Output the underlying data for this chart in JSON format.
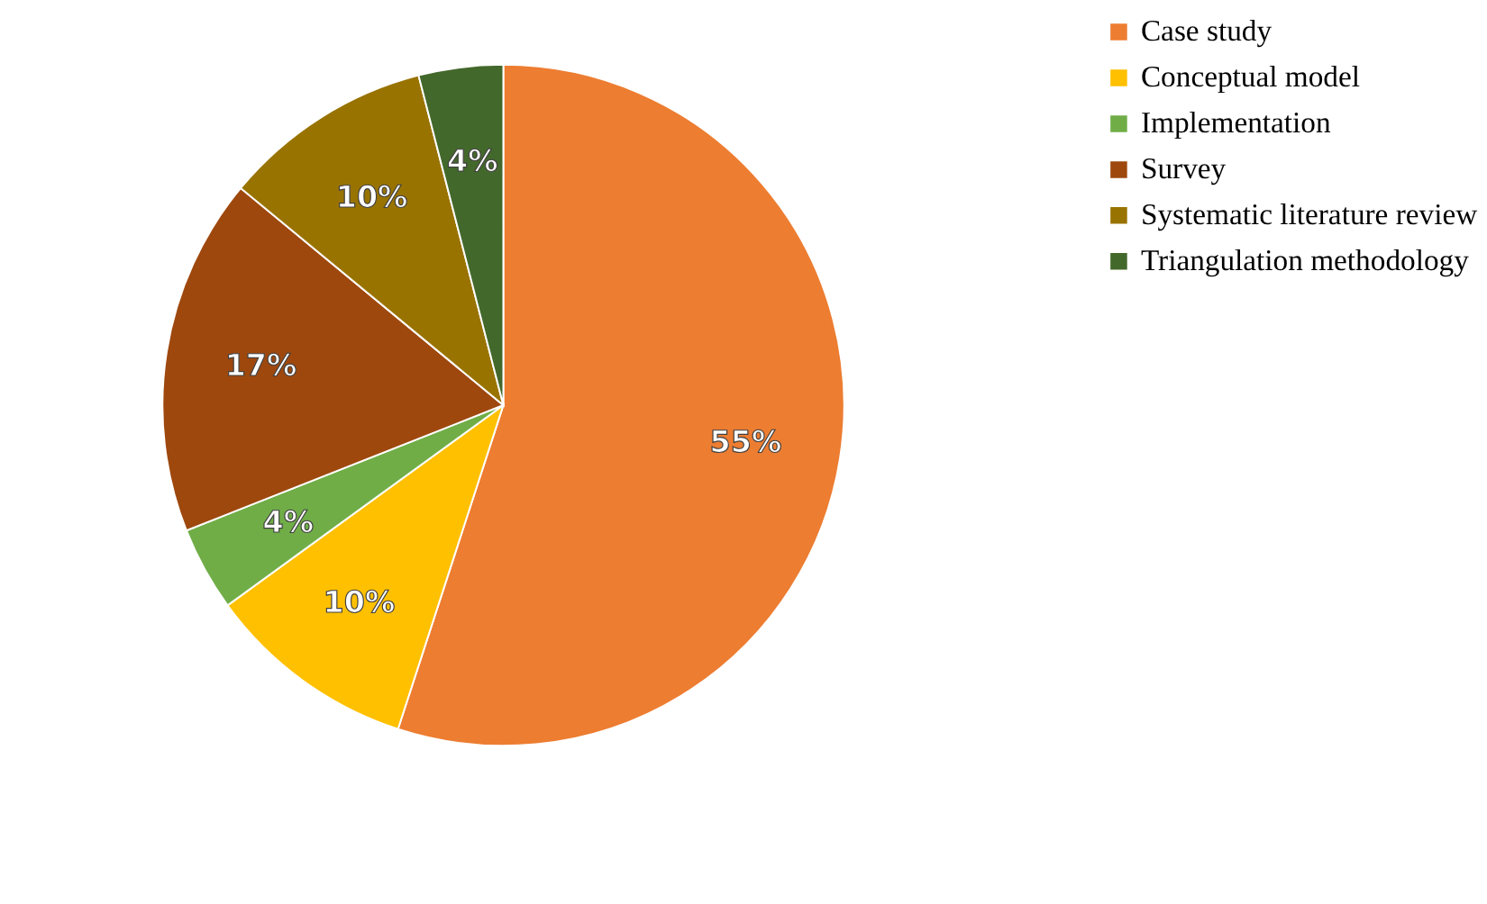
{
  "chart_data": {
    "type": "pie",
    "categories": [
      "Case study",
      "Conceptual model",
      "Implementation",
      "Survey",
      "Systematic literature review",
      "Triangulation methodology"
    ],
    "values": [
      55,
      10,
      4,
      17,
      10,
      4
    ],
    "colors": [
      "#ed7d31",
      "#ffc000",
      "#70ad47",
      "#9e480e",
      "#997300",
      "#43682b"
    ],
    "value_labels": [
      "55%",
      "10%",
      "4%",
      "17%",
      "10%",
      "4%"
    ],
    "legend": "right"
  }
}
